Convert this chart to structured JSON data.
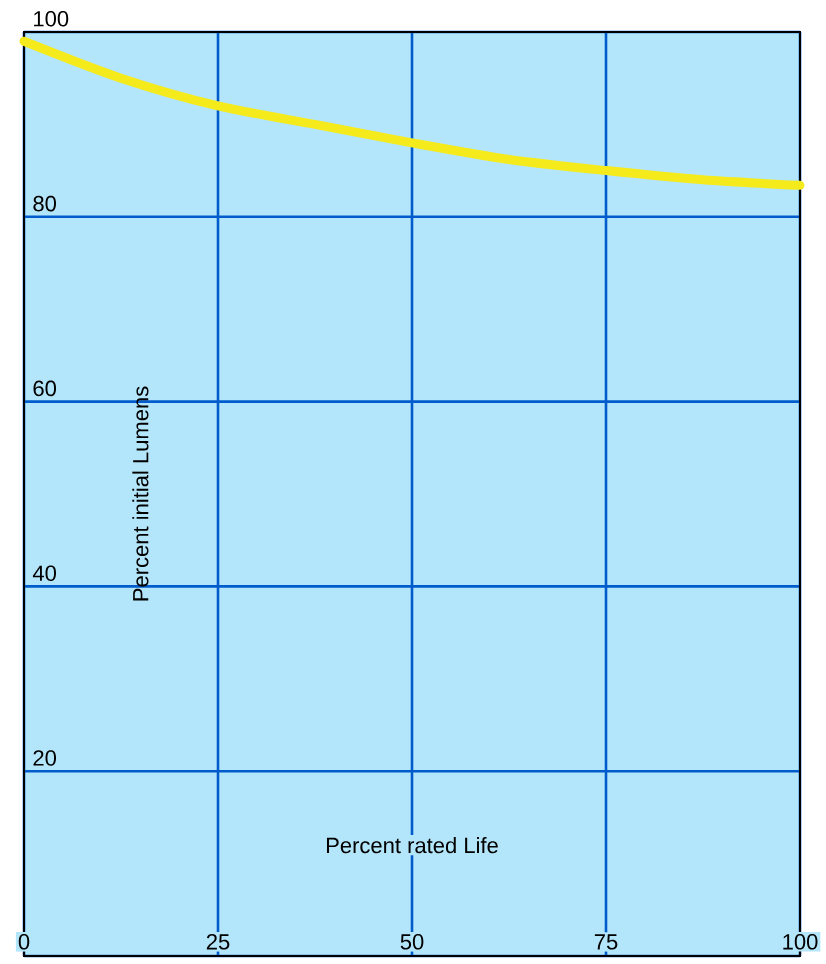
{
  "chart_data": {
    "type": "line",
    "xlabel": "Percent rated Life",
    "ylabel": "Percent initial Lumens",
    "x": [
      0,
      12.5,
      25,
      37.5,
      50,
      62.5,
      75,
      87.5,
      100
    ],
    "series": [
      {
        "color": "#f5ea1c",
        "values": [
          99,
          95,
          92,
          90,
          88,
          86.2,
          85,
          84,
          83.4
        ]
      }
    ],
    "xlim": [
      0,
      100
    ],
    "ylim": [
      0,
      100
    ],
    "xticks": [
      0,
      25,
      50,
      75,
      100
    ],
    "yticks": [
      {
        "value": 0,
        "label": null
      },
      20,
      40,
      60,
      80,
      100
    ],
    "grid": true,
    "marker": "none",
    "line_style": "solid"
  }
}
